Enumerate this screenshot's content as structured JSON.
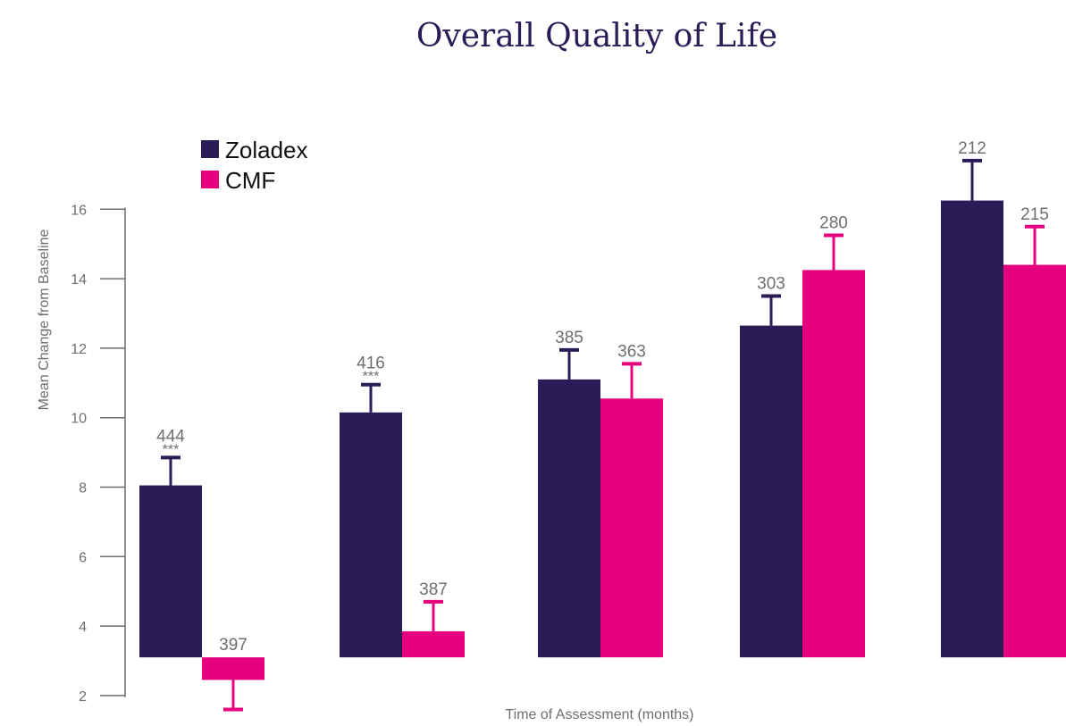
{
  "chart_data": {
    "type": "bar",
    "title": "Overall Quality of Life",
    "xlabel": "Time of Assessment (months)",
    "ylabel": "Mean Change from Baseline",
    "ylim": [
      1,
      17
    ],
    "yticks": [
      "2",
      "4",
      "6",
      "8",
      "10",
      "12",
      "14",
      "16"
    ],
    "baseline": 3.1,
    "grid": false,
    "legend_position": "top-left",
    "groups": 5,
    "series": [
      {
        "name": "Zoladex",
        "color": "#2b1b57",
        "values": [
          8.05,
          10.15,
          11.1,
          12.65,
          16.25
        ],
        "error_ends": [
          8.85,
          10.95,
          11.95,
          13.5,
          17.4
        ],
        "n_labels": [
          "444",
          "416",
          "385",
          "303",
          "212"
        ],
        "sig_labels": [
          "***",
          "***",
          "",
          "",
          ""
        ]
      },
      {
        "name": "CMF",
        "color": "#e6007e",
        "values": [
          2.45,
          3.85,
          10.55,
          14.25,
          14.4
        ],
        "error_ends": [
          1.6,
          4.7,
          11.55,
          15.25,
          15.5
        ],
        "n_labels": [
          "397",
          "387",
          "363",
          "280",
          "215"
        ],
        "sig_labels": [
          "",
          "",
          "",
          "",
          ""
        ]
      }
    ]
  }
}
